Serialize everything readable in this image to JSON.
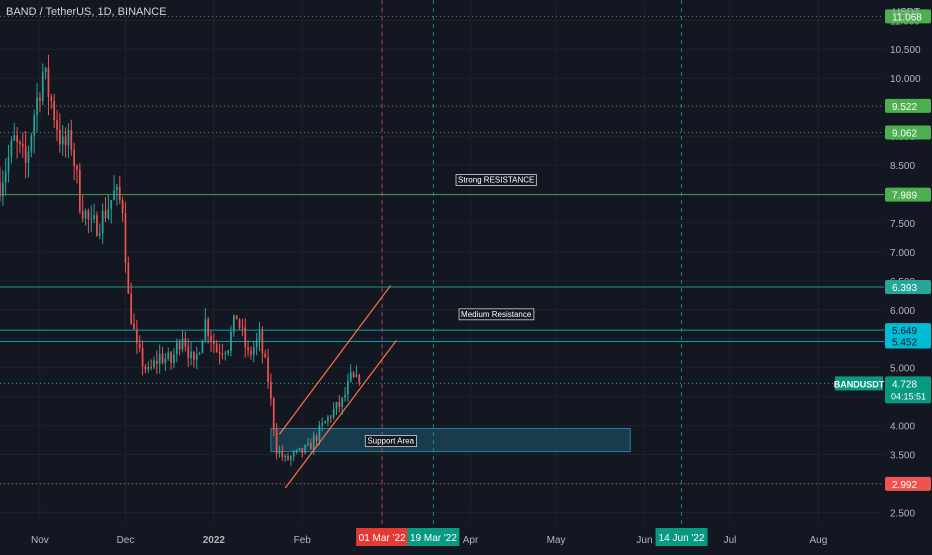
{
  "header": {
    "symbol_title": "BAND / TetherUS, 1D, BINANCE",
    "currency": "USDT"
  },
  "colors": {
    "background": "#131722",
    "up": "#26a69a",
    "down": "#ef5350",
    "grid": "#1e222d",
    "level_green": "#4caf50",
    "level_teal": "#26a69a",
    "level_cyan": "#00bcd4",
    "level_red": "#ef5350",
    "channel": "#ff7043",
    "support_fill": "#1b4a5e",
    "axis_text": "#b2b5be",
    "marker_red": "#e53935",
    "marker_teal": "#089981"
  },
  "chart_data": {
    "type": "candlestick",
    "title": "BAND / TetherUS, 1D, BINANCE",
    "ylabel": "USDT",
    "ylim": [
      2.3,
      11.35
    ],
    "y_ticks": [
      "2.500",
      "3.000",
      "3.500",
      "4.000",
      "4.500",
      "5.000",
      "5.500",
      "6.000",
      "6.500",
      "7.000",
      "7.500",
      "8.000",
      "8.500",
      "9.000",
      "9.500",
      "10.000",
      "10.500",
      "11.000"
    ],
    "x_ticks": [
      "Nov",
      "Dec",
      "2022",
      "Feb",
      "Mar",
      "Apr",
      "May",
      "Jun",
      "Jul",
      "Aug"
    ],
    "x_tick_days": [
      0,
      30,
      61,
      92,
      120,
      151,
      181,
      212,
      242,
      273
    ],
    "x_range_days": [
      -14,
      296
    ],
    "x_origin_date": "2021-11-01",
    "last_candle_day": 112,
    "levels": [
      {
        "value": 11.068,
        "label": "11.068",
        "color": "#4caf50",
        "style": "dotted",
        "badge": "green"
      },
      {
        "value": 9.522,
        "label": "9.522",
        "color": "#4caf50",
        "style": "dotted",
        "badge": "green"
      },
      {
        "value": 9.062,
        "label": "9.062",
        "color": "#4caf50",
        "style": "dotted",
        "badge": "green"
      },
      {
        "value": 7.989,
        "label": "7.989",
        "color": "#4caf50",
        "style": "solid",
        "badge": "green"
      },
      {
        "value": 6.393,
        "label": "6.393",
        "color": "#26a69a",
        "style": "solid",
        "badge": "teal"
      },
      {
        "value": 5.649,
        "label": "5.649",
        "color": "#00bcd4",
        "style": "solid",
        "badge": "cyan"
      },
      {
        "value": 5.452,
        "label": "5.452",
        "color": "#00bcd4",
        "style": "solid",
        "badge": "cyan"
      },
      {
        "value": 2.992,
        "label": "2.992",
        "color": "#ef5350",
        "style": "dotted",
        "badge": "red"
      }
    ],
    "current_price": {
      "symbol": "BANDUSDT",
      "value": 4.728,
      "label": "4.728",
      "countdown": "04:15:51"
    },
    "annotations": [
      {
        "text": "Strong RESISTANCE",
        "day": 160,
        "y": 8.25
      },
      {
        "text": "Medium Resistance",
        "day": 160,
        "y": 5.93
      },
      {
        "text": "Support Area",
        "day": 123,
        "y": 3.74
      }
    ],
    "support_zone": {
      "day_start": 81,
      "day_end": 207,
      "y_low": 3.55,
      "y_high": 3.95
    },
    "channel": [
      {
        "day1": 84,
        "y1": 3.85,
        "day2": 123,
        "y2": 6.42
      },
      {
        "day1": 86,
        "y1": 2.92,
        "day2": 125,
        "y2": 5.47
      }
    ],
    "vertical_markers": [
      {
        "day": 120,
        "label": "01 Mar '22",
        "color": "#ef5350",
        "badge": "#e53935"
      },
      {
        "day": 138,
        "label": "19 Mar '22",
        "color": "#26a69a",
        "badge": "#089981"
      },
      {
        "day": 225,
        "label": "14 Jun '22",
        "color": "#26a69a",
        "badge": "#089981"
      }
    ],
    "close_path": [
      {
        "day": -14,
        "price": 8.2
      },
      {
        "day": -9,
        "price": 8.9
      },
      {
        "day": -5,
        "price": 8.5
      },
      {
        "day": -2,
        "price": 9.4
      },
      {
        "day": 1,
        "price": 10.1
      },
      {
        "day": 4,
        "price": 9.6
      },
      {
        "day": 8,
        "price": 8.8
      },
      {
        "day": 11,
        "price": 8.9
      },
      {
        "day": 14,
        "price": 7.9
      },
      {
        "day": 18,
        "price": 7.4
      },
      {
        "day": 22,
        "price": 7.6
      },
      {
        "day": 26,
        "price": 8.0
      },
      {
        "day": 29,
        "price": 7.8
      },
      {
        "day": 31,
        "price": 6.2
      },
      {
        "day": 34,
        "price": 5.3
      },
      {
        "day": 38,
        "price": 4.9
      },
      {
        "day": 42,
        "price": 5.2
      },
      {
        "day": 46,
        "price": 5.1
      },
      {
        "day": 50,
        "price": 5.6
      },
      {
        "day": 54,
        "price": 5.0
      },
      {
        "day": 58,
        "price": 5.8
      },
      {
        "day": 62,
        "price": 5.3
      },
      {
        "day": 66,
        "price": 5.4
      },
      {
        "day": 69,
        "price": 5.9
      },
      {
        "day": 73,
        "price": 5.2
      },
      {
        "day": 77,
        "price": 5.5
      },
      {
        "day": 80,
        "price": 4.8
      },
      {
        "day": 83,
        "price": 3.6
      },
      {
        "day": 86,
        "price": 3.4
      },
      {
        "day": 90,
        "price": 3.5
      },
      {
        "day": 94,
        "price": 3.6
      },
      {
        "day": 98,
        "price": 3.9
      },
      {
        "day": 102,
        "price": 4.2
      },
      {
        "day": 106,
        "price": 4.4
      },
      {
        "day": 109,
        "price": 4.8
      },
      {
        "day": 112,
        "price": 4.728
      }
    ]
  }
}
